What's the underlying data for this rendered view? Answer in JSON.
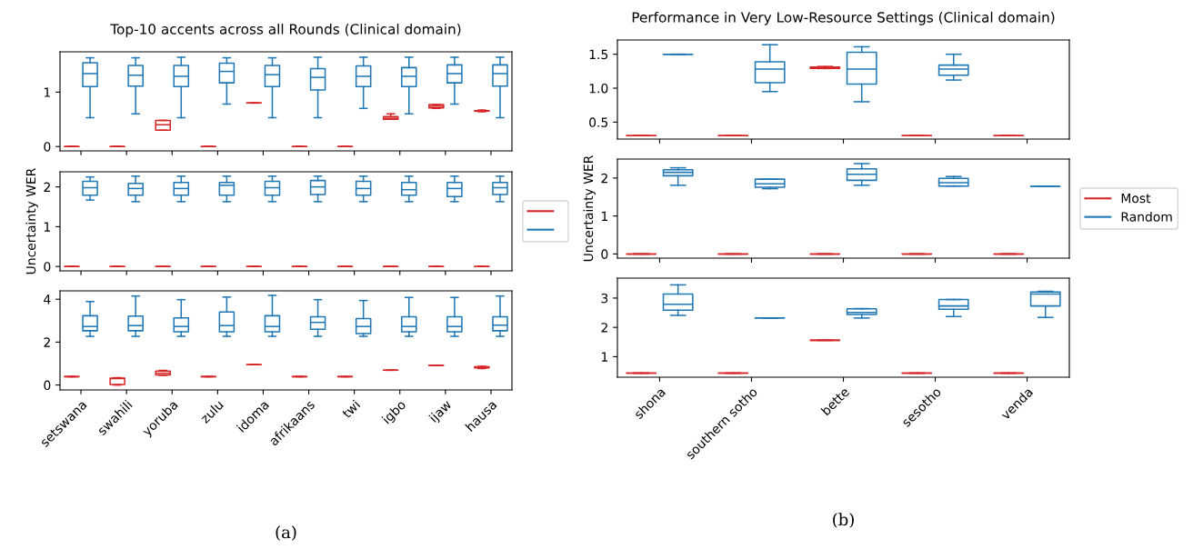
{
  "chart_data": [
    {
      "type": "box",
      "title": "Top-10 accents across all Rounds (Clinical domain)",
      "categories": [
        null,
        null,
        null,
        null,
        null,
        null,
        null,
        null,
        null,
        null
      ],
      "tick_labels": "y",
      "ylim": [
        -0.08,
        1.74
      ],
      "yticks": [
        0,
        1
      ],
      "series": [
        {
          "color": "#d62728",
          "boxes": [
            {
              "low": 0,
              "q1": 0,
              "median": 0,
              "q3": 0,
              "high": 0
            },
            {
              "low": 0,
              "q1": 0,
              "median": 0,
              "q3": 0,
              "high": 0
            },
            {
              "low": 0.3,
              "q1": 0.3,
              "median": 0.4,
              "q3": 0.48,
              "high": 0.48
            },
            {
              "low": 0,
              "q1": 0,
              "median": 0,
              "q3": 0,
              "high": 0
            },
            {
              "low": 0.8,
              "q1": 0.8,
              "median": 0.8,
              "q3": 0.8,
              "high": 0.8
            },
            {
              "low": 0,
              "q1": 0,
              "median": 0,
              "q3": 0,
              "high": 0
            },
            {
              "low": 0,
              "q1": 0,
              "median": 0,
              "q3": 0,
              "high": 0
            },
            {
              "low": 0.5,
              "q1": 0.5,
              "median": 0.52,
              "q3": 0.55,
              "high": 0.6
            },
            {
              "low": 0.7,
              "q1": 0.71,
              "median": 0.74,
              "q3": 0.77,
              "high": 0.77
            },
            {
              "low": 0.64,
              "q1": 0.65,
              "median": 0.65,
              "q3": 0.66,
              "high": 0.67
            }
          ]
        },
        {
          "color": "#1f77b4",
          "boxes": [
            {
              "low": 0.53,
              "q1": 1.1,
              "median": 1.34,
              "q3": 1.54,
              "high": 1.63
            },
            {
              "low": 0.6,
              "q1": 1.11,
              "median": 1.31,
              "q3": 1.49,
              "high": 1.63
            },
            {
              "low": 0.53,
              "q1": 1.1,
              "median": 1.29,
              "q3": 1.49,
              "high": 1.64
            },
            {
              "low": 0.78,
              "q1": 1.17,
              "median": 1.38,
              "q3": 1.53,
              "high": 1.63
            },
            {
              "low": 0.53,
              "q1": 1.1,
              "median": 1.32,
              "q3": 1.49,
              "high": 1.63
            },
            {
              "low": 0.53,
              "q1": 1.04,
              "median": 1.27,
              "q3": 1.43,
              "high": 1.64
            },
            {
              "low": 0.7,
              "q1": 1.1,
              "median": 1.29,
              "q3": 1.48,
              "high": 1.64
            },
            {
              "low": 0.6,
              "q1": 1.1,
              "median": 1.29,
              "q3": 1.45,
              "high": 1.64
            },
            {
              "low": 0.78,
              "q1": 1.17,
              "median": 1.34,
              "q3": 1.5,
              "high": 1.64
            },
            {
              "low": 0.53,
              "q1": 1.11,
              "median": 1.34,
              "q3": 1.5,
              "high": 1.64
            }
          ]
        }
      ]
    },
    {
      "type": "box",
      "ylabel": "Uncertainty WER",
      "categories": [
        null,
        null,
        null,
        null,
        null,
        null,
        null,
        null,
        null,
        null
      ],
      "tick_labels": "y",
      "ylim": [
        -0.11,
        2.38
      ],
      "yticks": [
        0,
        1,
        2
      ],
      "legend": "right",
      "series": [
        {
          "color": "#d62728",
          "boxes": [
            {
              "low": 0,
              "q1": 0,
              "median": 0,
              "q3": 0,
              "high": 0
            },
            {
              "low": 0,
              "q1": 0,
              "median": 0,
              "q3": 0,
              "high": 0
            },
            {
              "low": 0,
              "q1": 0,
              "median": 0,
              "q3": 0,
              "high": 0
            },
            {
              "low": 0,
              "q1": 0,
              "median": 0,
              "q3": 0,
              "high": 0
            },
            {
              "low": 0,
              "q1": 0,
              "median": 0,
              "q3": 0,
              "high": 0
            },
            {
              "low": 0,
              "q1": 0,
              "median": 0,
              "q3": 0,
              "high": 0
            },
            {
              "low": 0,
              "q1": 0,
              "median": 0,
              "q3": 0,
              "high": 0
            },
            {
              "low": 0,
              "q1": 0,
              "median": 0,
              "q3": 0,
              "high": 0
            },
            {
              "low": 0,
              "q1": 0,
              "median": 0,
              "q3": 0,
              "high": 0
            },
            {
              "low": 0,
              "q1": 0,
              "median": 0,
              "q3": 0,
              "high": 0
            }
          ]
        },
        {
          "color": "#1f77b4",
          "boxes": [
            {
              "low": 1.67,
              "q1": 1.79,
              "median": 1.98,
              "q3": 2.14,
              "high": 2.25
            },
            {
              "low": 1.63,
              "q1": 1.79,
              "median": 1.96,
              "q3": 2.09,
              "high": 2.27
            },
            {
              "low": 1.63,
              "q1": 1.79,
              "median": 1.96,
              "q3": 2.11,
              "high": 2.27
            },
            {
              "low": 1.63,
              "q1": 1.79,
              "median": 2.04,
              "q3": 2.11,
              "high": 2.27
            },
            {
              "low": 1.63,
              "q1": 1.79,
              "median": 1.98,
              "q3": 2.14,
              "high": 2.27
            },
            {
              "low": 1.63,
              "q1": 1.81,
              "median": 2.0,
              "q3": 2.16,
              "high": 2.27
            },
            {
              "low": 1.63,
              "q1": 1.79,
              "median": 1.96,
              "q3": 2.14,
              "high": 2.27
            },
            {
              "low": 1.63,
              "q1": 1.79,
              "median": 1.93,
              "q3": 2.11,
              "high": 2.27
            },
            {
              "low": 1.63,
              "q1": 1.76,
              "median": 1.96,
              "q3": 2.11,
              "high": 2.27
            },
            {
              "low": 1.63,
              "q1": 1.81,
              "median": 1.98,
              "q3": 2.11,
              "high": 2.27
            }
          ]
        }
      ]
    },
    {
      "type": "box",
      "categories": [
        "setswana",
        "swahili",
        "yoruba",
        "zulu",
        "idoma",
        "afrikaans",
        "twi",
        "igbo",
        "ijaw",
        "hausa"
      ],
      "ylim": [
        -0.23,
        4.39
      ],
      "yticks": [
        0,
        2,
        4
      ],
      "annotations": [
        "(a)"
      ],
      "series": [
        {
          "color": "#d62728",
          "boxes": [
            {
              "low": 0.39,
              "q1": 0.39,
              "median": 0.39,
              "q3": 0.39,
              "high": 0.39
            },
            {
              "low": 0,
              "q1": 0.02,
              "median": 0.3,
              "q3": 0.32,
              "high": 0.34
            },
            {
              "low": 0.45,
              "q1": 0.47,
              "median": 0.55,
              "q3": 0.65,
              "high": 0.68
            },
            {
              "low": 0.39,
              "q1": 0.39,
              "median": 0.39,
              "q3": 0.39,
              "high": 0.39
            },
            {
              "low": 0.95,
              "q1": 0.95,
              "median": 0.95,
              "q3": 0.95,
              "high": 0.95
            },
            {
              "low": 0.39,
              "q1": 0.39,
              "median": 0.39,
              "q3": 0.39,
              "high": 0.39
            },
            {
              "low": 0.39,
              "q1": 0.39,
              "median": 0.39,
              "q3": 0.39,
              "high": 0.39
            },
            {
              "low": 0.69,
              "q1": 0.69,
              "median": 0.69,
              "q3": 0.69,
              "high": 0.69
            },
            {
              "low": 0.92,
              "q1": 0.92,
              "median": 0.92,
              "q3": 0.92,
              "high": 0.92
            },
            {
              "low": 0.77,
              "q1": 0.8,
              "median": 0.82,
              "q3": 0.85,
              "high": 0.87
            }
          ]
        },
        {
          "color": "#1f77b4",
          "boxes": [
            {
              "low": 2.27,
              "q1": 2.53,
              "median": 2.73,
              "q3": 3.23,
              "high": 3.89
            },
            {
              "low": 2.27,
              "q1": 2.53,
              "median": 2.77,
              "q3": 3.21,
              "high": 4.15
            },
            {
              "low": 2.27,
              "q1": 2.48,
              "median": 2.73,
              "q3": 3.13,
              "high": 3.98
            },
            {
              "low": 2.27,
              "q1": 2.48,
              "median": 2.77,
              "q3": 3.4,
              "high": 4.1
            },
            {
              "low": 2.27,
              "q1": 2.48,
              "median": 2.73,
              "q3": 3.23,
              "high": 4.18
            },
            {
              "low": 2.27,
              "q1": 2.6,
              "median": 2.92,
              "q3": 3.18,
              "high": 3.98
            },
            {
              "low": 2.27,
              "q1": 2.4,
              "median": 2.73,
              "q3": 3.1,
              "high": 3.94
            },
            {
              "low": 2.27,
              "q1": 2.48,
              "median": 2.73,
              "q3": 3.18,
              "high": 4.08
            },
            {
              "low": 2.27,
              "q1": 2.48,
              "median": 2.73,
              "q3": 3.18,
              "high": 4.08
            },
            {
              "low": 2.27,
              "q1": 2.53,
              "median": 2.79,
              "q3": 3.18,
              "high": 4.15
            }
          ]
        }
      ]
    },
    {
      "type": "box",
      "title": "Performance in Very Low-Resource Settings (Clinical domain)",
      "categories": [
        null,
        null,
        null,
        null,
        null
      ],
      "tick_labels": "y",
      "ylim": [
        0.25,
        1.71
      ],
      "yticks": [
        0.5,
        {
          "value": 1,
          "label": "1.0"
        },
        1.5
      ],
      "series": [
        {
          "color": "#d62728",
          "boxes": [
            {
              "low": 0.3,
              "q1": 0.3,
              "median": 0.3,
              "q3": 0.3,
              "high": 0.3
            },
            {
              "low": 0.3,
              "q1": 0.3,
              "median": 0.3,
              "q3": 0.3,
              "high": 0.3
            },
            {
              "low": 1.29,
              "q1": 1.29,
              "median": 1.3,
              "q3": 1.31,
              "high": 1.32
            },
            {
              "low": 0.3,
              "q1": 0.3,
              "median": 0.3,
              "q3": 0.3,
              "high": 0.3
            },
            {
              "low": 0.3,
              "q1": 0.3,
              "median": 0.3,
              "q3": 0.3,
              "high": 0.3
            }
          ]
        },
        {
          "color": "#1f77b4",
          "boxes": [
            {
              "low": 1.5,
              "q1": 1.5,
              "median": 1.5,
              "q3": 1.5,
              "high": 1.5
            },
            {
              "low": 0.95,
              "q1": 1.08,
              "median": 1.28,
              "q3": 1.39,
              "high": 1.64
            },
            {
              "low": 0.8,
              "q1": 1.06,
              "median": 1.28,
              "q3": 1.53,
              "high": 1.61
            },
            {
              "low": 1.12,
              "q1": 1.19,
              "median": 1.28,
              "q3": 1.34,
              "high": 1.5
            },
            null
          ]
        }
      ]
    },
    {
      "type": "box",
      "ylabel": "Uncertainty WER",
      "categories": [
        null,
        null,
        null,
        null,
        null
      ],
      "tick_labels": "y",
      "ylim": [
        -0.11,
        2.5
      ],
      "yticks": [
        0,
        1,
        2
      ],
      "legend": "right",
      "series": [
        {
          "name": "Most",
          "color": "#d62728",
          "boxes": [
            {
              "low": 0,
              "q1": 0,
              "median": 0,
              "q3": 0,
              "high": 0
            },
            {
              "low": 0,
              "q1": 0,
              "median": 0,
              "q3": 0,
              "high": 0
            },
            {
              "low": 0,
              "q1": 0,
              "median": 0,
              "q3": 0,
              "high": 0
            },
            {
              "low": 0,
              "q1": 0,
              "median": 0,
              "q3": 0,
              "high": 0
            },
            {
              "low": 0,
              "q1": 0,
              "median": 0,
              "q3": 0,
              "high": 0
            }
          ]
        },
        {
          "name": "Random",
          "color": "#1f77b4",
          "boxes": [
            {
              "low": 1.81,
              "q1": 2.06,
              "median": 2.15,
              "q3": 2.22,
              "high": 2.27
            },
            {
              "low": 1.72,
              "q1": 1.76,
              "median": 1.85,
              "q3": 1.97,
              "high": 1.97
            },
            {
              "low": 1.81,
              "q1": 1.94,
              "median": 2.1,
              "q3": 2.24,
              "high": 2.38
            },
            {
              "low": 1.79,
              "q1": 1.79,
              "median": 1.88,
              "q3": 1.99,
              "high": 2.04
            },
            {
              "low": 1.78,
              "q1": 1.78,
              "median": 1.78,
              "q3": 1.78,
              "high": 1.78
            }
          ]
        }
      ]
    },
    {
      "type": "box",
      "categories": [
        "shona",
        "southern sotho",
        "bette",
        "sesotho",
        "venda"
      ],
      "ylim": [
        0.3,
        3.68
      ],
      "yticks": [
        1,
        2,
        3
      ],
      "annotations": [
        "(b)"
      ],
      "series": [
        {
          "color": "#d62728",
          "boxes": [
            {
              "low": 0.44,
              "q1": 0.44,
              "median": 0.44,
              "q3": 0.44,
              "high": 0.44
            },
            {
              "low": 0.44,
              "q1": 0.44,
              "median": 0.44,
              "q3": 0.44,
              "high": 0.44
            },
            {
              "low": 1.56,
              "q1": 1.56,
              "median": 1.56,
              "q3": 1.56,
              "high": 1.56
            },
            {
              "low": 0.44,
              "q1": 0.44,
              "median": 0.44,
              "q3": 0.44,
              "high": 0.44
            },
            {
              "low": 0.44,
              "q1": 0.44,
              "median": 0.44,
              "q3": 0.44,
              "high": 0.44
            }
          ]
        },
        {
          "color": "#1f77b4",
          "boxes": [
            {
              "low": 2.41,
              "q1": 2.59,
              "median": 2.79,
              "q3": 3.14,
              "high": 3.45
            },
            {
              "low": 2.32,
              "q1": 2.32,
              "median": 2.32,
              "q3": 2.32,
              "high": 2.32
            },
            {
              "low": 2.32,
              "q1": 2.44,
              "median": 2.51,
              "q3": 2.63,
              "high": 2.64
            },
            {
              "low": 2.37,
              "q1": 2.62,
              "median": 2.73,
              "q3": 2.95,
              "high": 2.95
            },
            {
              "low": 2.34,
              "q1": 2.73,
              "median": 3.14,
              "q3": 3.21,
              "high": 3.23
            }
          ]
        }
      ]
    }
  ]
}
